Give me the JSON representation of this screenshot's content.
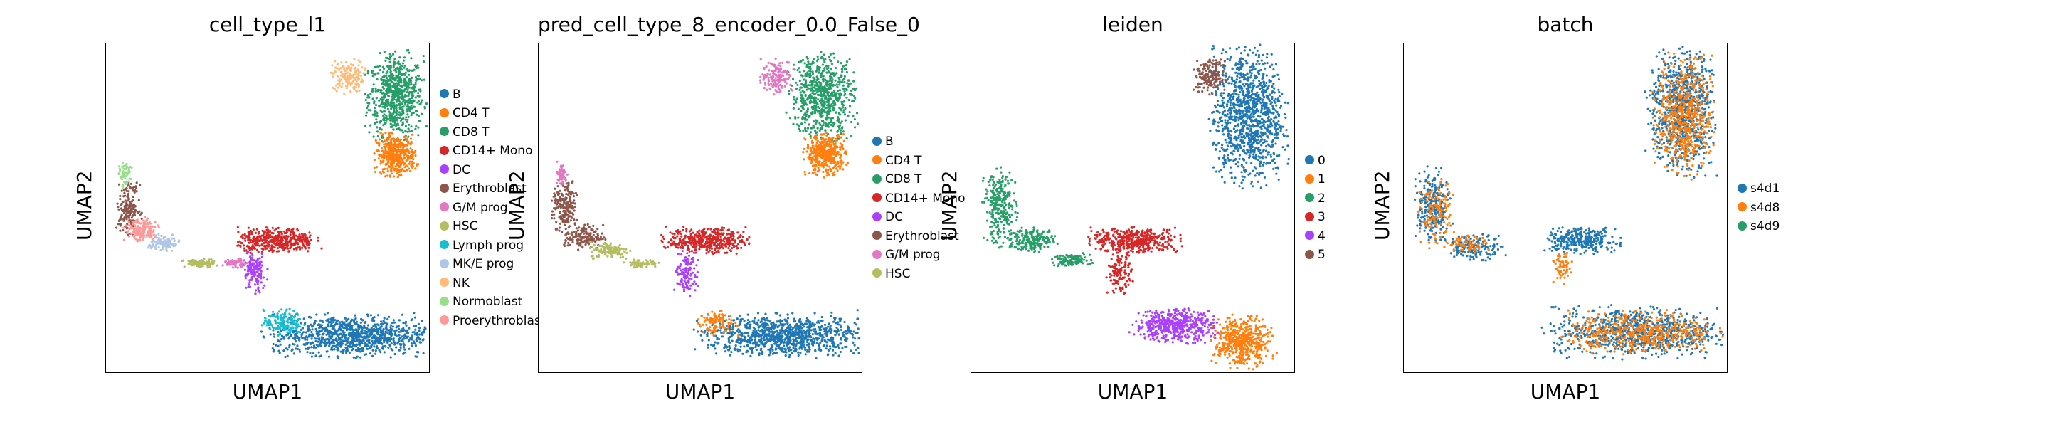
{
  "chart_data": [
    {
      "type": "scatter",
      "title": "cell_type_l1",
      "xlabel": "UMAP1",
      "ylabel": "UMAP2",
      "legend_placement": "right-outside",
      "legend": [
        {
          "label": "B",
          "color": "#1f77b4"
        },
        {
          "label": "CD4 T",
          "color": "#ff7f0e"
        },
        {
          "label": "CD8 T",
          "color": "#279e68"
        },
        {
          "label": "CD14+ Mono",
          "color": "#d62728"
        },
        {
          "label": "DC",
          "color": "#aa40fc"
        },
        {
          "label": "Erythroblast",
          "color": "#8c564b"
        },
        {
          "label": "G/M prog",
          "color": "#e377c2"
        },
        {
          "label": "HSC",
          "color": "#b5bd61"
        },
        {
          "label": "Lymph prog",
          "color": "#17becf"
        },
        {
          "label": "MK/E prog",
          "color": "#aec7e8"
        },
        {
          "label": "NK",
          "color": "#ffbb78"
        },
        {
          "label": "Normoblast",
          "color": "#98df8a"
        },
        {
          "label": "Proerythroblast",
          "color": "#ff9896"
        }
      ],
      "clusters": [
        {
          "cls": "CD8 T",
          "cx": 0.9,
          "cy": 0.84,
          "rx": 0.07,
          "ry": 0.1,
          "n": 700
        },
        {
          "cls": "NK",
          "cx": 0.75,
          "cy": 0.9,
          "rx": 0.04,
          "ry": 0.04,
          "n": 160
        },
        {
          "cls": "CD4 T",
          "cx": 0.9,
          "cy": 0.66,
          "rx": 0.05,
          "ry": 0.05,
          "n": 420
        },
        {
          "cls": "B",
          "cx": 0.76,
          "cy": 0.11,
          "rx": 0.2,
          "ry": 0.05,
          "n": 1000
        },
        {
          "cls": "Lymph prog",
          "cx": 0.55,
          "cy": 0.15,
          "rx": 0.05,
          "ry": 0.03,
          "n": 150
        },
        {
          "cls": "CD14+ Mono",
          "cx": 0.53,
          "cy": 0.4,
          "rx": 0.1,
          "ry": 0.03,
          "n": 420
        },
        {
          "cls": "DC",
          "cx": 0.46,
          "cy": 0.3,
          "rx": 0.03,
          "ry": 0.05,
          "n": 130
        },
        {
          "cls": "Erythroblast",
          "cx": 0.07,
          "cy": 0.5,
          "rx": 0.03,
          "ry": 0.06,
          "n": 180
        },
        {
          "cls": "Proerythroblast",
          "cx": 0.11,
          "cy": 0.43,
          "rx": 0.04,
          "ry": 0.03,
          "n": 160
        },
        {
          "cls": "MK/E prog",
          "cx": 0.18,
          "cy": 0.39,
          "rx": 0.04,
          "ry": 0.02,
          "n": 110
        },
        {
          "cls": "HSC",
          "cx": 0.29,
          "cy": 0.33,
          "rx": 0.04,
          "ry": 0.01,
          "n": 90
        },
        {
          "cls": "Normoblast",
          "cx": 0.06,
          "cy": 0.6,
          "rx": 0.015,
          "ry": 0.03,
          "n": 60
        },
        {
          "cls": "G/M prog",
          "cx": 0.4,
          "cy": 0.33,
          "rx": 0.03,
          "ry": 0.01,
          "n": 60
        }
      ]
    },
    {
      "type": "scatter",
      "title": "pred_cell_type_8_encoder_0.0_False_0",
      "xlabel": "UMAP1",
      "ylabel": "UMAP2",
      "legend_placement": "right-outside",
      "legend": [
        {
          "label": "B",
          "color": "#1f77b4"
        },
        {
          "label": "CD4 T",
          "color": "#ff7f0e"
        },
        {
          "label": "CD8 T",
          "color": "#279e68"
        },
        {
          "label": "CD14+ Mono",
          "color": "#d62728"
        },
        {
          "label": "DC",
          "color": "#aa40fc"
        },
        {
          "label": "Erythroblast",
          "color": "#8c564b"
        },
        {
          "label": "G/M prog",
          "color": "#e377c2"
        },
        {
          "label": "HSC",
          "color": "#b5bd61"
        }
      ],
      "clusters": [
        {
          "cls": "CD8 T",
          "cx": 0.88,
          "cy": 0.84,
          "rx": 0.08,
          "ry": 0.1,
          "n": 700
        },
        {
          "cls": "G/M prog",
          "cx": 0.74,
          "cy": 0.9,
          "rx": 0.04,
          "ry": 0.04,
          "n": 160
        },
        {
          "cls": "CD4 T",
          "cx": 0.89,
          "cy": 0.66,
          "rx": 0.05,
          "ry": 0.05,
          "n": 420
        },
        {
          "cls": "B",
          "cx": 0.76,
          "cy": 0.11,
          "rx": 0.2,
          "ry": 0.05,
          "n": 1000
        },
        {
          "cls": "CD4 T",
          "cx": 0.55,
          "cy": 0.15,
          "rx": 0.05,
          "ry": 0.03,
          "n": 100
        },
        {
          "cls": "CD14+ Mono",
          "cx": 0.52,
          "cy": 0.4,
          "rx": 0.1,
          "ry": 0.03,
          "n": 420
        },
        {
          "cls": "DC",
          "cx": 0.46,
          "cy": 0.3,
          "rx": 0.03,
          "ry": 0.05,
          "n": 130
        },
        {
          "cls": "Erythroblast",
          "cx": 0.08,
          "cy": 0.5,
          "rx": 0.03,
          "ry": 0.06,
          "n": 200
        },
        {
          "cls": "Erythroblast",
          "cx": 0.14,
          "cy": 0.41,
          "rx": 0.05,
          "ry": 0.03,
          "n": 160
        },
        {
          "cls": "HSC",
          "cx": 0.22,
          "cy": 0.37,
          "rx": 0.05,
          "ry": 0.02,
          "n": 130
        },
        {
          "cls": "HSC",
          "cx": 0.32,
          "cy": 0.33,
          "rx": 0.04,
          "ry": 0.01,
          "n": 70
        },
        {
          "cls": "G/M prog",
          "cx": 0.07,
          "cy": 0.6,
          "rx": 0.015,
          "ry": 0.03,
          "n": 50
        }
      ]
    },
    {
      "type": "scatter",
      "title": "leiden",
      "xlabel": "UMAP1",
      "ylabel": "UMAP2",
      "legend_placement": "right-outside",
      "legend": [
        {
          "label": "0",
          "color": "#1f77b4"
        },
        {
          "label": "1",
          "color": "#ff7f0e"
        },
        {
          "label": "2",
          "color": "#279e68"
        },
        {
          "label": "3",
          "color": "#d62728"
        },
        {
          "label": "4",
          "color": "#aa40fc"
        },
        {
          "label": "5",
          "color": "#8c564b"
        }
      ],
      "clusters": [
        {
          "cls": "0",
          "cx": 0.86,
          "cy": 0.78,
          "rx": 0.09,
          "ry": 0.16,
          "n": 1100
        },
        {
          "cls": "5",
          "cx": 0.74,
          "cy": 0.9,
          "rx": 0.04,
          "ry": 0.04,
          "n": 160
        },
        {
          "cls": "1",
          "cx": 0.84,
          "cy": 0.09,
          "rx": 0.07,
          "ry": 0.06,
          "n": 500
        },
        {
          "cls": "4",
          "cx": 0.63,
          "cy": 0.14,
          "rx": 0.1,
          "ry": 0.04,
          "n": 520
        },
        {
          "cls": "3",
          "cx": 0.51,
          "cy": 0.4,
          "rx": 0.11,
          "ry": 0.03,
          "n": 420
        },
        {
          "cls": "3",
          "cx": 0.46,
          "cy": 0.3,
          "rx": 0.03,
          "ry": 0.05,
          "n": 130
        },
        {
          "cls": "2",
          "cx": 0.09,
          "cy": 0.5,
          "rx": 0.04,
          "ry": 0.09,
          "n": 280
        },
        {
          "cls": "2",
          "cx": 0.19,
          "cy": 0.4,
          "rx": 0.06,
          "ry": 0.03,
          "n": 200
        },
        {
          "cls": "2",
          "cx": 0.31,
          "cy": 0.34,
          "rx": 0.05,
          "ry": 0.015,
          "n": 110
        }
      ]
    },
    {
      "type": "scatter",
      "title": "batch",
      "xlabel": "UMAP1",
      "ylabel": "UMAP2",
      "legend_placement": "right-outside",
      "legend": [
        {
          "label": "s4d1",
          "color": "#1f77b4"
        },
        {
          "label": "s4d8",
          "color": "#ff7f0e"
        },
        {
          "label": "s4d9",
          "color": "#279e68"
        }
      ],
      "clusters": [
        {
          "cls": "s4d1",
          "cx": 0.86,
          "cy": 0.8,
          "rx": 0.08,
          "ry": 0.15,
          "n": 800
        },
        {
          "cls": "s4d8",
          "cx": 0.87,
          "cy": 0.78,
          "rx": 0.07,
          "ry": 0.14,
          "n": 600
        },
        {
          "cls": "s4d1",
          "cx": 0.72,
          "cy": 0.12,
          "rx": 0.21,
          "ry": 0.06,
          "n": 800
        },
        {
          "cls": "s4d8",
          "cx": 0.74,
          "cy": 0.12,
          "rx": 0.19,
          "ry": 0.05,
          "n": 500
        },
        {
          "cls": "s4d1",
          "cx": 0.55,
          "cy": 0.4,
          "rx": 0.09,
          "ry": 0.03,
          "n": 300
        },
        {
          "cls": "s4d8",
          "cx": 0.49,
          "cy": 0.32,
          "rx": 0.03,
          "ry": 0.04,
          "n": 60
        },
        {
          "cls": "s4d1",
          "cx": 0.09,
          "cy": 0.5,
          "rx": 0.04,
          "ry": 0.09,
          "n": 260
        },
        {
          "cls": "s4d8",
          "cx": 0.1,
          "cy": 0.48,
          "rx": 0.04,
          "ry": 0.08,
          "n": 140
        },
        {
          "cls": "s4d1",
          "cx": 0.22,
          "cy": 0.38,
          "rx": 0.07,
          "ry": 0.03,
          "n": 160
        },
        {
          "cls": "s4d8",
          "cx": 0.2,
          "cy": 0.39,
          "rx": 0.05,
          "ry": 0.02,
          "n": 70
        }
      ]
    }
  ]
}
